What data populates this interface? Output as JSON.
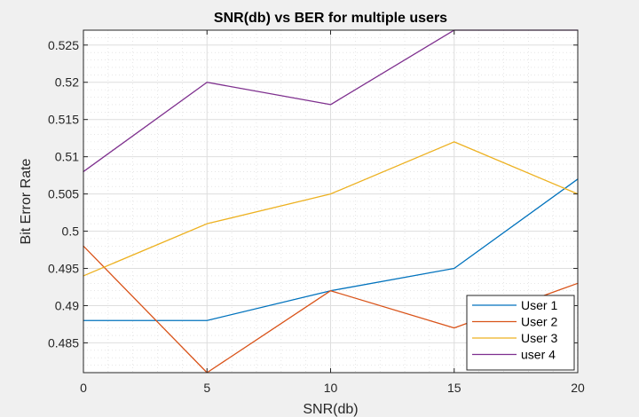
{
  "chart_data": {
    "type": "line",
    "title": "SNR(db) vs BER for multiple users",
    "xlabel": "SNR(db)",
    "ylabel": "Bit Error Rate",
    "x": [
      0,
      5,
      10,
      15,
      20
    ],
    "xlim": [
      0,
      20
    ],
    "ylim": [
      0.481,
      0.527
    ],
    "xticks": [
      0,
      5,
      10,
      15,
      20
    ],
    "yticks": [
      0.485,
      0.49,
      0.495,
      0.5,
      0.505,
      0.51,
      0.515,
      0.52,
      0.525
    ],
    "ytick_labels": [
      "0.485",
      "0.49",
      "0.495",
      "0.5",
      "0.505",
      "0.51",
      "0.515",
      "0.52",
      "0.525"
    ],
    "grid": true,
    "minor_grid": true,
    "legend_position": "bottom-right",
    "series": [
      {
        "name": "User 1",
        "color": "#0072BD",
        "values": [
          0.488,
          0.488,
          0.492,
          0.495,
          0.507
        ]
      },
      {
        "name": "User 2",
        "color": "#D95319",
        "values": [
          0.498,
          0.481,
          0.492,
          0.487,
          0.493
        ]
      },
      {
        "name": "User 3",
        "color": "#EDB120",
        "values": [
          0.494,
          0.501,
          0.505,
          0.512,
          0.505
        ]
      },
      {
        "name": "user 4",
        "color": "#7E2F8E",
        "values": [
          0.508,
          0.52,
          0.517,
          0.527,
          0.527
        ]
      }
    ]
  }
}
